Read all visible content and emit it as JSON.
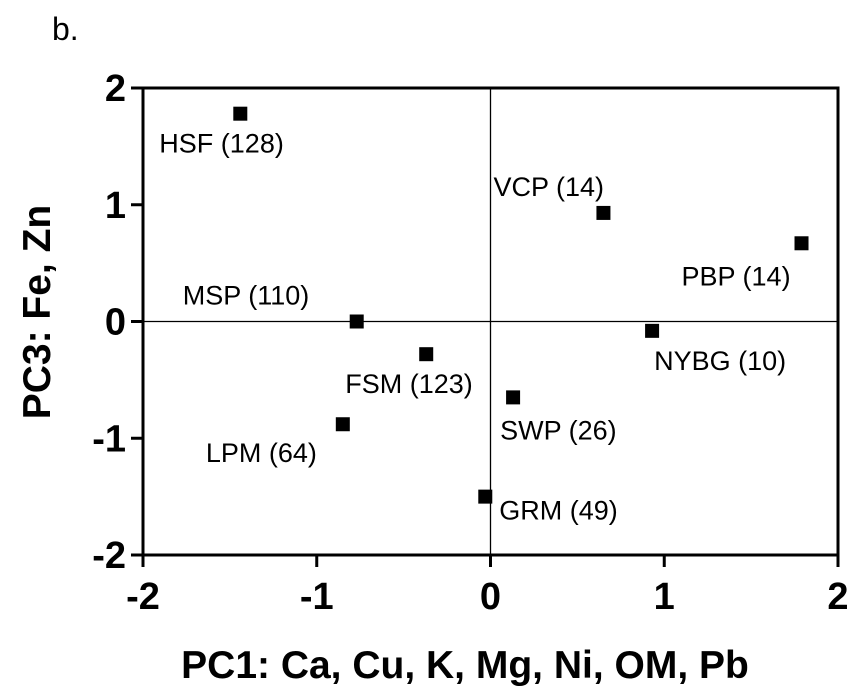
{
  "panel_label": "b.",
  "chart_data": {
    "type": "scatter",
    "title": "",
    "xlabel": "PC1: Ca, Cu, K, Mg, Ni, OM, Pb",
    "ylabel": "PC3: Fe, Zn",
    "xlim": [
      -2,
      2
    ],
    "ylim": [
      -2,
      2
    ],
    "x_ticks": [
      -2,
      -1,
      0,
      1,
      2
    ],
    "y_ticks": [
      -2,
      -1,
      0,
      1,
      2
    ],
    "x_tick_labels": [
      "-2",
      "-1",
      "0",
      "1",
      "2"
    ],
    "y_tick_labels": [
      "-2",
      "-1",
      "0",
      "1",
      "2"
    ],
    "grid": false,
    "zero_lines": true,
    "marker": "square",
    "marker_color": "#000000",
    "points": [
      {
        "label": "HSF (128)",
        "x": -1.44,
        "y": 1.78
      },
      {
        "label": "VCP (14)",
        "x": 0.65,
        "y": 0.93
      },
      {
        "label": "PBP (14)",
        "x": 1.79,
        "y": 0.67
      },
      {
        "label": "MSP (110)",
        "x": -0.77,
        "y": 0.0
      },
      {
        "label": "NYBG (10)",
        "x": 0.93,
        "y": -0.08
      },
      {
        "label": "FSM (123)",
        "x": -0.37,
        "y": -0.28
      },
      {
        "label": "SWP (26)",
        "x": 0.13,
        "y": -0.65
      },
      {
        "label": "LPM (64)",
        "x": -0.85,
        "y": -0.88
      },
      {
        "label": "GRM (49)",
        "x": -0.03,
        "y": -1.5
      }
    ]
  }
}
